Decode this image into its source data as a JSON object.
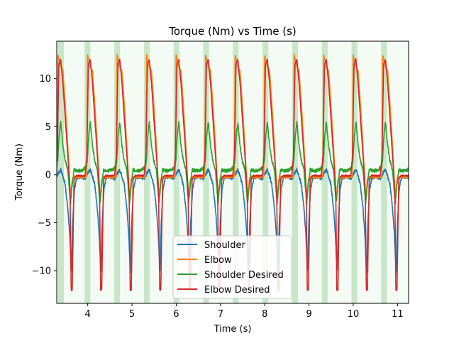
{
  "chart_data": {
    "type": "line",
    "title": "Torque (Nm) vs Time (s)",
    "xlabel": "Time (s)",
    "ylabel": "Torque (Nm)",
    "xlim": [
      3.3,
      11.25
    ],
    "ylim": [
      -13.4,
      13.9
    ],
    "xticks": [
      4,
      5,
      6,
      7,
      8,
      9,
      10,
      11
    ],
    "yticks": [
      -10,
      -5,
      0,
      5,
      10
    ],
    "grid": false,
    "legend_position": "lower center",
    "period_s": 0.667,
    "first_peak_s": 3.39,
    "cycles": 12,
    "shaded_regions": {
      "color": "#2ca02c",
      "strong_opacity": 0.22,
      "light_opacity": 0.05,
      "strong_spans": [
        [
          3.33,
          3.46
        ],
        [
          3.93,
          4.06
        ],
        [
          4.6,
          4.73
        ],
        [
          5.27,
          5.4
        ],
        [
          5.94,
          6.07
        ],
        [
          6.61,
          6.74
        ],
        [
          7.28,
          7.41
        ],
        [
          7.95,
          8.08
        ],
        [
          8.62,
          8.75
        ],
        [
          9.29,
          9.42
        ],
        [
          9.96,
          10.09
        ],
        [
          10.63,
          10.76
        ]
      ]
    },
    "series": [
      {
        "name": "Shoulder",
        "color": "#1f77b4",
        "keyframes": [
          [
            0,
            0.5
          ],
          [
            0.04,
            0.0
          ],
          [
            0.1,
            -1.0
          ],
          [
            0.16,
            -3.5
          ],
          [
            0.2,
            -6.0
          ],
          [
            0.24,
            -10.2
          ],
          [
            0.27,
            -5.0
          ],
          [
            0.31,
            -1.5
          ],
          [
            0.36,
            -0.3
          ],
          [
            0.45,
            -0.2
          ],
          [
            0.55,
            -0.4
          ],
          [
            0.62,
            0.2
          ],
          [
            0.667,
            0.5
          ]
        ]
      },
      {
        "name": "Elbow",
        "color": "#ff7f0e",
        "keyframes": [
          [
            0,
            11.2
          ],
          [
            0.05,
            10.8
          ],
          [
            0.1,
            7.5
          ],
          [
            0.16,
            3.0
          ],
          [
            0.22,
            -2.5
          ],
          [
            0.26,
            -0.5
          ],
          [
            0.31,
            -0.2
          ],
          [
            0.4,
            -0.3
          ],
          [
            0.5,
            -0.3
          ],
          [
            0.585,
            -0.2
          ],
          [
            0.605,
            12.5
          ],
          [
            0.63,
            12.0
          ],
          [
            0.667,
            11.2
          ]
        ]
      },
      {
        "name": "Shoulder Desired",
        "color": "#2ca02c",
        "keyframes": [
          [
            0,
            5.5
          ],
          [
            0.05,
            3.0
          ],
          [
            0.1,
            1.5
          ],
          [
            0.16,
            0.5
          ],
          [
            0.22,
            -3.0
          ],
          [
            0.26,
            -1.0
          ],
          [
            0.3,
            0.5
          ],
          [
            0.4,
            0.4
          ],
          [
            0.5,
            0.5
          ],
          [
            0.57,
            0.8
          ],
          [
            0.6,
            1.5
          ],
          [
            0.63,
            4.0
          ],
          [
            0.667,
            5.5
          ]
        ]
      },
      {
        "name": "Elbow Desired",
        "color": "#d62728",
        "keyframes": [
          [
            0,
            12.0
          ],
          [
            0.05,
            9.5
          ],
          [
            0.1,
            6.0
          ],
          [
            0.16,
            2.0
          ],
          [
            0.21,
            -1.5
          ],
          [
            0.235,
            -12.0
          ],
          [
            0.26,
            -12.0
          ],
          [
            0.3,
            -0.5
          ],
          [
            0.35,
            -0.1
          ],
          [
            0.45,
            -0.1
          ],
          [
            0.55,
            -0.1
          ],
          [
            0.59,
            2.0
          ],
          [
            0.625,
            11.5
          ],
          [
            0.667,
            12.0
          ]
        ]
      }
    ]
  }
}
